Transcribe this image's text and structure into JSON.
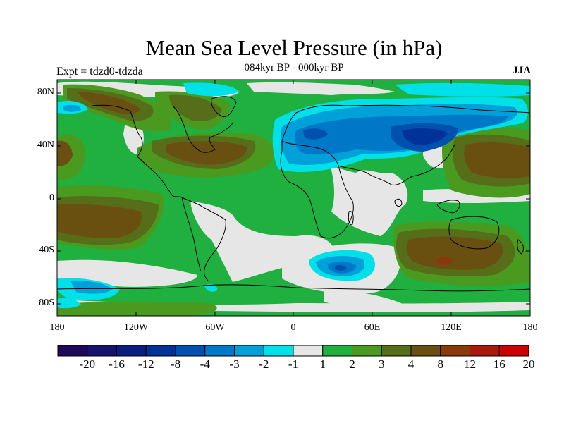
{
  "title": "Mean Sea Level Pressure (in hPa)",
  "subtitle": "084kyr BP - 000kyr BP",
  "experiment": "Expt = tdzd0-tdzda",
  "season": "JJA",
  "lat_labels": [
    "80N",
    "40N",
    "0",
    "40S",
    "80S"
  ],
  "lon_labels": [
    "180",
    "120W",
    "60W",
    "0",
    "60E",
    "120E",
    "180"
  ],
  "colorbar": {
    "labels": [
      "-20",
      "-16",
      "-12",
      "-8",
      "-4",
      "-3",
      "-2",
      "-1",
      "1",
      "2",
      "3",
      "4",
      "8",
      "12",
      "16",
      "20"
    ],
    "colors": [
      "#1e0a5a",
      "#14146e",
      "#0a1e82",
      "#00329a",
      "#0050b0",
      "#0078c8",
      "#00a0d8",
      "#00e0e8",
      "#e6e6e6",
      "#20b040",
      "#4a9a20",
      "#566e1a",
      "#6a5010",
      "#8a3a0a",
      "#aa1a0a",
      "#cc0000"
    ]
  },
  "legend": {
    "neg_strong": "#0a1e82",
    "neg_mid": "#0078c8",
    "neg_weak": "#00a0d8",
    "neg_faint": "#00e0e8",
    "neutral": "#e6e6e6",
    "pos_1": "#20b040",
    "pos_2": "#4a9a20",
    "pos_3": "#566e1a",
    "pos_4": "#6a5010",
    "pos_5": "#8a3a0a"
  }
}
